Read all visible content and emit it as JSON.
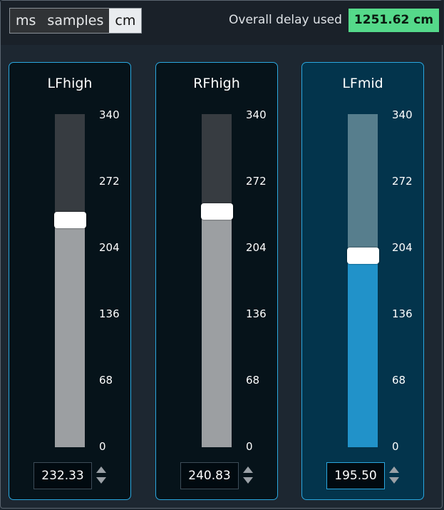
{
  "units": {
    "options": [
      "ms",
      "samples",
      "cm"
    ],
    "selected": "cm"
  },
  "overall": {
    "label": "Overall delay used",
    "value": "1251.62 cm"
  },
  "scale": {
    "min": 0,
    "max": 340,
    "ticks": [
      "340",
      "272",
      "204",
      "136",
      "68",
      "0"
    ]
  },
  "channels": [
    {
      "name": "LFhigh",
      "value": 232.33,
      "display_value": "232.33",
      "selected": false,
      "colors": {
        "upper": "#373c41",
        "lower": "#9c9fa2"
      }
    },
    {
      "name": "RFhigh",
      "value": 240.83,
      "display_value": "240.83",
      "selected": false,
      "colors": {
        "upper": "#373c41",
        "lower": "#9c9fa2"
      }
    },
    {
      "name": "LFmid",
      "value": 195.5,
      "display_value": "195.50",
      "selected": true,
      "colors": {
        "upper": "#577e8d",
        "lower": "#2192c9"
      }
    }
  ],
  "colors": {
    "accent": "#2aa8e0",
    "overall_bg": "#55d98a"
  }
}
